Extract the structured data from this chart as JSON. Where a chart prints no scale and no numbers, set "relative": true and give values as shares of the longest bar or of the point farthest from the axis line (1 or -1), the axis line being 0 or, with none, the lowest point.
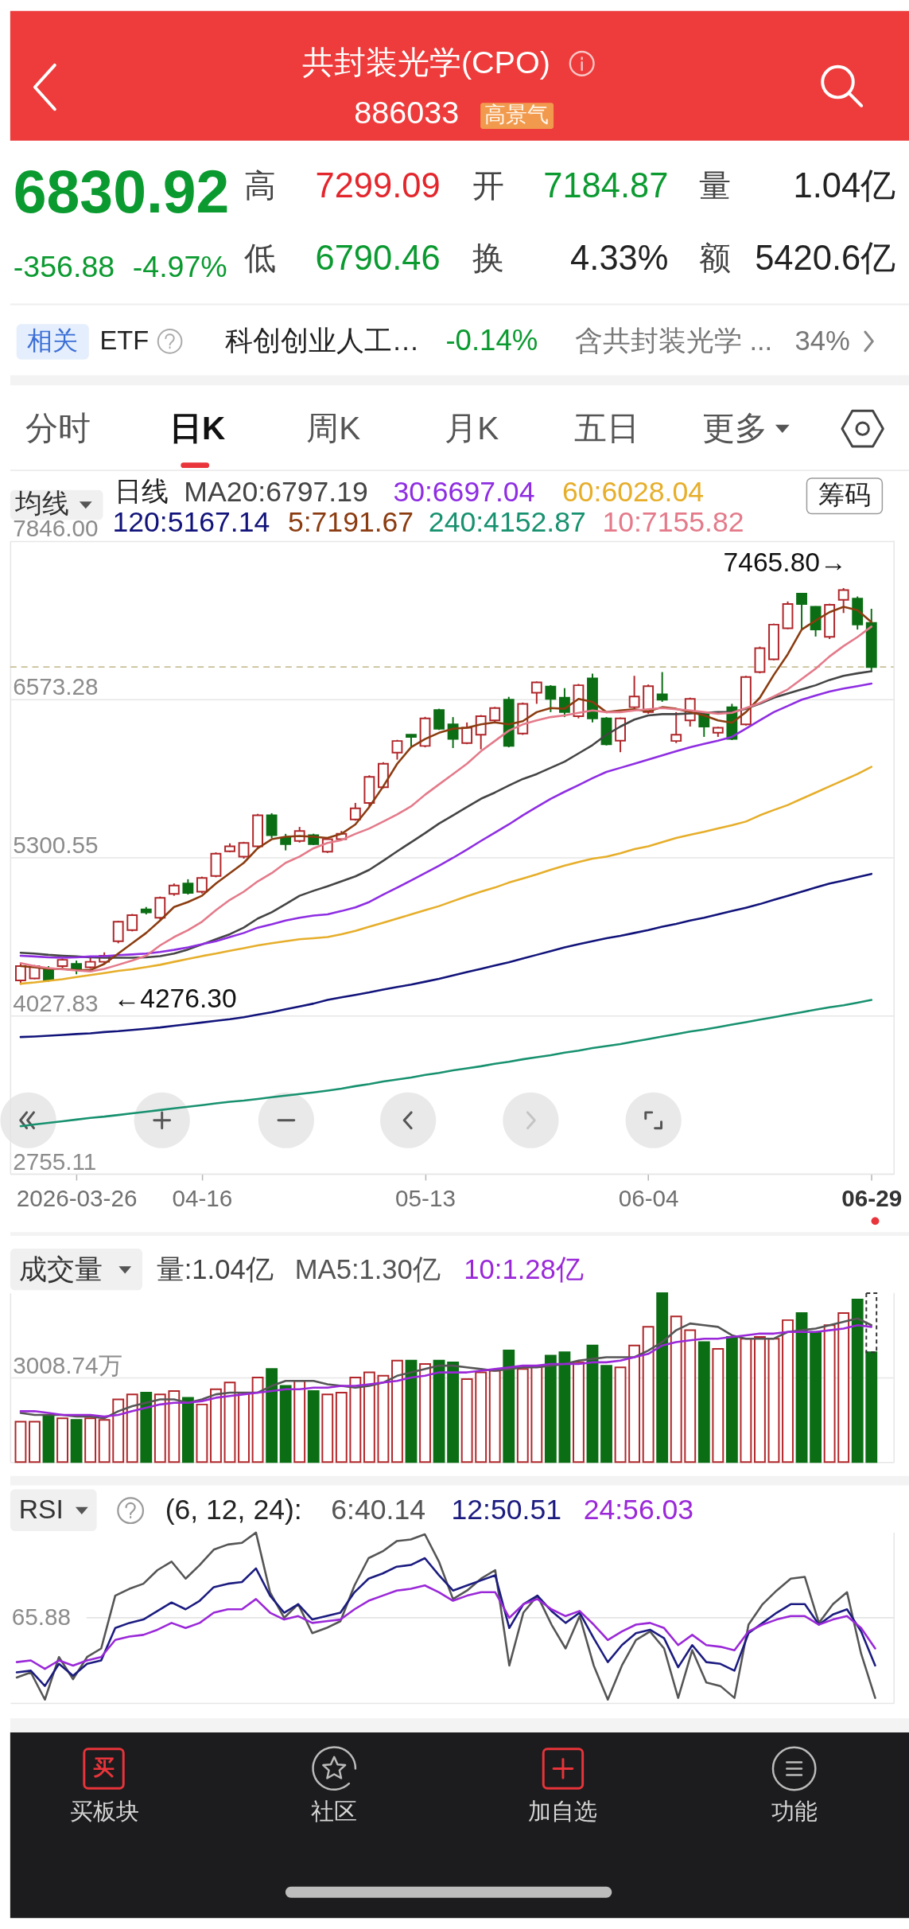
{
  "chart_data": [
    {
      "type": "other",
      "title": "共封装光学(CPO)",
      "annotations": [
        "886033",
        "高景气",
        "6830.92",
        "-356.88",
        "-4.97%",
        "高",
        "7299.09",
        "开",
        "7184.87",
        "量",
        "1.04亿",
        "低",
        "6790.46",
        "换",
        "4.33%",
        "额",
        "5420.6亿",
        "相关",
        "ETF",
        "科创创业人工…",
        "-0.14%",
        "含共封装光学 ...",
        "34%",
        "分时",
        "日K",
        "周K",
        "月K",
        "五日",
        "更多"
      ]
    },
    {
      "type": "candlestick",
      "title": "均线",
      "legend": "top",
      "legend_title": "日线",
      "grid": "y",
      "categories": [
        null,
        null,
        null,
        null,
        "2026-03-26",
        null,
        null,
        null,
        null,
        null,
        null,
        null,
        null,
        "04-16",
        null,
        null,
        null,
        null,
        null,
        null,
        null,
        null,
        null,
        null,
        null,
        null,
        null,
        null,
        null,
        "05-13",
        null,
        null,
        null,
        null,
        null,
        null,
        null,
        null,
        null,
        null,
        null,
        null,
        null,
        null,
        null,
        "06-04",
        null,
        null,
        null,
        null,
        null,
        null,
        null,
        null,
        null,
        null,
        null,
        null,
        null,
        null,
        null,
        "06-29"
      ],
      "ohlc": [
        [
          4310,
          4450,
          4276.3,
          4426
        ],
        [
          4327,
          4435,
          4320,
          4426
        ],
        [
          4393,
          4426,
          4300,
          4310
        ],
        [
          4426,
          4485,
          4410,
          4476
        ],
        [
          4443,
          4470,
          4360,
          4393
        ],
        [
          4416,
          4493,
          4405,
          4460
        ],
        [
          4460,
          4536,
          4450,
          4509
        ],
        [
          4626,
          4790,
          4609,
          4782
        ],
        [
          4715,
          4845,
          4705,
          4835
        ],
        [
          4881,
          4901,
          4841,
          4858
        ],
        [
          4815,
          4985,
          4800,
          4974
        ],
        [
          5007,
          5090,
          4991,
          5074
        ],
        [
          5090,
          5124,
          5001,
          5014
        ],
        [
          5024,
          5145,
          5010,
          5134
        ],
        [
          5150,
          5340,
          5140,
          5329
        ],
        [
          5349,
          5413,
          5340,
          5389
        ],
        [
          5306,
          5425,
          5290,
          5416
        ],
        [
          5389,
          5650,
          5380,
          5638
        ],
        [
          5638,
          5655,
          5456,
          5479
        ],
        [
          5456,
          5489,
          5356,
          5406
        ],
        [
          5432,
          5545,
          5419,
          5512
        ],
        [
          5479,
          5490,
          5399,
          5406
        ],
        [
          5346,
          5456,
          5335,
          5446
        ],
        [
          5446,
          5512,
          5440,
          5489
        ],
        [
          5605,
          5738,
          5595,
          5695
        ],
        [
          5738,
          5960,
          5705,
          5947
        ],
        [
          5864,
          6065,
          5855,
          6053
        ],
        [
          6143,
          6245,
          6086,
          6236
        ],
        [
          6286,
          6290,
          6186,
          6269
        ],
        [
          6196,
          6430,
          6185,
          6418
        ],
        [
          6485,
          6495,
          6325,
          6335
        ],
        [
          6369,
          6428,
          6179,
          6252
        ],
        [
          6219,
          6385,
          6210,
          6342
        ],
        [
          6286,
          6445,
          6169,
          6435
        ],
        [
          6402,
          6510,
          6390,
          6501
        ],
        [
          6568,
          6591,
          6185,
          6196
        ],
        [
          6296,
          6545,
          6285,
          6535
        ],
        [
          6624,
          6715,
          6535,
          6707
        ],
        [
          6674,
          6685,
          6468,
          6575
        ],
        [
          6584,
          6661,
          6428,
          6468
        ],
        [
          6435,
          6695,
          6418,
          6684
        ],
        [
          6740,
          6777,
          6385,
          6418
        ],
        [
          6418,
          6428,
          6200,
          6209
        ],
        [
          6239,
          6425,
          6146,
          6418
        ],
        [
          6508,
          6760,
          6495,
          6594
        ],
        [
          6468,
          6690,
          6455,
          6677
        ],
        [
          6611,
          6790,
          6551,
          6568
        ],
        [
          6236,
          6468,
          6219,
          6286
        ],
        [
          6402,
          6585,
          6352,
          6575
        ],
        [
          6452,
          6460,
          6269,
          6352
        ],
        [
          6302,
          6350,
          6269,
          6342
        ],
        [
          6508,
          6535,
          6243,
          6252
        ],
        [
          6369,
          6760,
          6360,
          6750
        ],
        [
          6790,
          6995,
          6780,
          6983
        ],
        [
          6893,
          7180,
          6885,
          7172
        ],
        [
          7142,
          7358,
          7135,
          7338
        ],
        [
          7421,
          7425,
          7132,
          7338
        ],
        [
          7315,
          7320,
          7076,
          7132
        ],
        [
          7073,
          7340,
          7056,
          7331
        ],
        [
          7371,
          7465.8,
          7265,
          7450
        ],
        [
          7381,
          7398,
          7132,
          7172
        ],
        [
          7184.87,
          7299.09,
          6790.46,
          6830.92
        ]
      ],
      "colors": [
        "#b0262a",
        "#b0262a",
        "#0b6e14",
        "#b0262a",
        "#0b6e14",
        "#b0262a",
        "#b0262a",
        "#b0262a",
        "#b0262a",
        "#0b6e14",
        "#b0262a",
        "#b0262a",
        "#0b6e14",
        "#b0262a",
        "#b0262a",
        "#b0262a",
        "#b0262a",
        "#b0262a",
        "#0b6e14",
        "#0b6e14",
        "#b0262a",
        "#0b6e14",
        "#b0262a",
        "#b0262a",
        "#b0262a",
        "#b0262a",
        "#b0262a",
        "#b0262a",
        "#0b6e14",
        "#b0262a",
        "#0b6e14",
        "#0b6e14",
        "#b0262a",
        "#b0262a",
        "#b0262a",
        "#0b6e14",
        "#b0262a",
        "#b0262a",
        "#0b6e14",
        "#0b6e14",
        "#b0262a",
        "#0b6e14",
        "#0b6e14",
        "#b0262a",
        "#b0262a",
        "#b0262a",
        "#0b6e14",
        "#b0262a",
        "#b0262a",
        "#0b6e14",
        "#b0262a",
        "#0b6e14",
        "#b0262a",
        "#b0262a",
        "#b0262a",
        "#b0262a",
        "#0b6e14",
        "#0b6e14",
        "#b0262a",
        "#b0262a",
        "#0b6e14",
        "#0b6e14"
      ],
      "ylim": [
        2755.11,
        7846
      ],
      "yticks": [
        {
          "value": 7846,
          "label": "7846.00"
        },
        6573.28,
        5300.55,
        4027.83,
        2755.11
      ],
      "ref_lines": [
        {
          "axis": "y",
          "value": 6830.92,
          "color": "#c8bf98",
          "line_style": "dashed"
        }
      ],
      "annotations": [
        "7465.80→",
        "←4276.30",
        "筹码"
      ],
      "series": [
        {
          "name": "MA20:6797.19",
          "type": "line",
          "color": "#444444",
          "values": [
            4533,
            4526,
            4516,
            4509,
            4503,
            4496,
            4493,
            4493,
            4493,
            4496,
            4506,
            4526,
            4559,
            4599,
            4642,
            4682,
            4735,
            4808,
            4858,
            4924,
            4991,
            5031,
            5067,
            5107,
            5147,
            5200,
            5273,
            5349,
            5422,
            5495,
            5572,
            5638,
            5705,
            5771,
            5821,
            5877,
            5930,
            5970,
            6020,
            6070,
            6136,
            6203,
            6286,
            6352,
            6408,
            6442,
            6452,
            6452,
            6458,
            6462,
            6468,
            6468,
            6495,
            6535,
            6584,
            6618,
            6651,
            6684,
            6727,
            6760,
            6780,
            6797.19
          ]
        },
        {
          "name": "30:6697.04",
          "type": "line",
          "color": "#8e2de2",
          "values": [
            4509,
            4503,
            4496,
            4493,
            4496,
            4503,
            4506,
            4513,
            4519,
            4526,
            4539,
            4556,
            4576,
            4602,
            4626,
            4659,
            4692,
            4735,
            4762,
            4792,
            4815,
            4832,
            4841,
            4868,
            4898,
            4941,
            5001,
            5057,
            5114,
            5173,
            5233,
            5296,
            5363,
            5432,
            5499,
            5565,
            5638,
            5705,
            5771,
            5827,
            5881,
            5937,
            5987,
            6020,
            6053,
            6087,
            6120,
            6153,
            6186,
            6213,
            6239,
            6269,
            6335,
            6402,
            6468,
            6518,
            6568,
            6601,
            6634,
            6657,
            6677,
            6697.04
          ]
        },
        {
          "name": "60:6028.04",
          "type": "line",
          "color": "#e6ae2a",
          "values": [
            4284,
            4294,
            4307,
            4320,
            4337,
            4353,
            4370,
            4387,
            4400,
            4417,
            4436,
            4460,
            4483,
            4506,
            4526,
            4549,
            4569,
            4592,
            4609,
            4626,
            4642,
            4650,
            4659,
            4682,
            4709,
            4742,
            4775,
            4808,
            4841,
            4875,
            4908,
            4948,
            4987,
            5024,
            5057,
            5097,
            5130,
            5163,
            5200,
            5233,
            5263,
            5290,
            5306,
            5333,
            5366,
            5389,
            5422,
            5456,
            5482,
            5505,
            5532,
            5558,
            5588,
            5638,
            5681,
            5721,
            5771,
            5821,
            5871,
            5921,
            5970,
            6028.04
          ]
        },
        {
          "name": "120:5167.14",
          "type": "line",
          "color": "#11137a",
          "values": [
            3855,
            3859,
            3865,
            3872,
            3879,
            3885,
            3895,
            3902,
            3912,
            3922,
            3932,
            3945,
            3958,
            3972,
            3985,
            3998,
            4015,
            4035,
            4055,
            4078,
            4101,
            4124,
            4154,
            4174,
            4194,
            4214,
            4237,
            4257,
            4277,
            4300,
            4323,
            4350,
            4377,
            4403,
            4430,
            4456,
            4486,
            4516,
            4546,
            4576,
            4602,
            4626,
            4649,
            4669,
            4692,
            4715,
            4742,
            4765,
            4792,
            4815,
            4841,
            4868,
            4895,
            4924,
            4958,
            4991,
            5024,
            5057,
            5090,
            5114,
            5140,
            5167.14
          ]
        },
        {
          "name": "5:7191.67",
          "type": "line",
          "color": "#8b3c10",
          "values": [
            4426,
            4416,
            4403,
            4403,
            4393,
            4393,
            4443,
            4526,
            4609,
            4692,
            4792,
            4901,
            4941,
            4991,
            5090,
            5173,
            5256,
            5373,
            5446,
            5466,
            5472,
            5466,
            5456,
            5489,
            5565,
            5705,
            5871,
            6053,
            6186,
            6252,
            6302,
            6335,
            6342,
            6369,
            6385,
            6369,
            6395,
            6468,
            6501,
            6495,
            6574,
            6551,
            6468,
            6481,
            6491,
            6475,
            6508,
            6495,
            6468,
            6442,
            6402,
            6382,
            6468,
            6584,
            6767,
            6933,
            7132,
            7205,
            7272,
            7315,
            7288,
            7191.67
          ]
        },
        {
          "name": "240:4152.87",
          "type": "line",
          "color": "#17916f",
          "values": [
            3138,
            3152,
            3165,
            3178,
            3191,
            3205,
            3215,
            3228,
            3241,
            3254,
            3268,
            3281,
            3294,
            3307,
            3321,
            3334,
            3344,
            3357,
            3371,
            3384,
            3397,
            3410,
            3424,
            3440,
            3460,
            3477,
            3497,
            3513,
            3530,
            3550,
            3567,
            3587,
            3603,
            3620,
            3640,
            3656,
            3676,
            3693,
            3709,
            3729,
            3746,
            3766,
            3782,
            3799,
            3819,
            3839,
            3859,
            3879,
            3899,
            3915,
            3935,
            3955,
            3975,
            3995,
            4015,
            4035,
            4055,
            4075,
            4094,
            4111,
            4131,
            4152.87
          ]
        },
        {
          "name": "10:7155.82",
          "type": "line",
          "color": "#e47a8a",
          "values": [
            4450,
            4426,
            4410,
            4400,
            4390,
            4383,
            4403,
            4436,
            4470,
            4509,
            4592,
            4659,
            4715,
            4782,
            4875,
            4958,
            5024,
            5107,
            5173,
            5256,
            5306,
            5373,
            5416,
            5439,
            5489,
            5532,
            5588,
            5645,
            5711,
            5804,
            5887,
            5970,
            6053,
            6153,
            6236,
            6319,
            6369,
            6402,
            6428,
            6442,
            6462,
            6481,
            6468,
            6468,
            6481,
            6491,
            6501,
            6491,
            6481,
            6468,
            6455,
            6462,
            6501,
            6541,
            6594,
            6651,
            6734,
            6817,
            6916,
            6999,
            7072,
            7155.82
          ]
        }
      ]
    },
    {
      "type": "bar",
      "title": "成交量",
      "subtitle": "量:1.04亿",
      "stacked": true,
      "tick_labels": "y",
      "legend": "top",
      "grid": "y",
      "ylim": [
        0,
        6017.48
      ],
      "yticks": [
        {
          "value": 3008.74,
          "label": "3008.74万"
        }
      ],
      "categories": [
        null,
        null,
        null,
        null,
        null,
        null,
        null,
        null,
        null,
        null,
        null,
        null,
        null,
        null,
        null,
        null,
        null,
        null,
        null,
        null,
        null,
        null,
        null,
        null,
        null,
        null,
        null,
        null,
        null,
        null,
        null,
        null,
        null,
        null,
        null,
        null,
        null,
        null,
        null,
        null,
        null,
        null,
        null,
        null,
        null,
        null,
        null,
        null,
        null,
        null,
        null,
        null,
        null,
        null,
        null,
        null,
        null,
        null,
        null,
        null,
        null,
        null
      ],
      "series": [
        {
          "type": "bar",
          "colors": [
            "#b0262a",
            "#b0262a",
            "#0b6e14",
            "#b0262a",
            "#0b6e14",
            "#b0262a",
            "#b0262a",
            "#b0262a",
            "#b0262a",
            "#0b6e14",
            "#b0262a",
            "#b0262a",
            "#0b6e14",
            "#b0262a",
            "#b0262a",
            "#b0262a",
            "#b0262a",
            "#b0262a",
            "#0b6e14",
            "#0b6e14",
            "#b0262a",
            "#0b6e14",
            "#b0262a",
            "#b0262a",
            "#b0262a",
            "#b0262a",
            "#b0262a",
            "#b0262a",
            "#0b6e14",
            "#b0262a",
            "#0b6e14",
            "#0b6e14",
            "#b0262a",
            "#b0262a",
            "#b0262a",
            "#0b6e14",
            "#b0262a",
            "#b0262a",
            "#0b6e14",
            "#0b6e14",
            "#b0262a",
            "#0b6e14",
            "#0b6e14",
            "#b0262a",
            "#b0262a",
            "#b0262a",
            "#0b6e14",
            "#b0262a",
            "#b0262a",
            "#0b6e14",
            "#b0262a",
            "#0b6e14",
            "#b0262a",
            "#b0262a",
            "#b0262a",
            "#b0262a",
            "#0b6e14",
            "#0b6e14",
            "#b0262a",
            "#b0262a",
            "#0b6e14",
            "#0b6e14"
          ],
          "values": [
            1440,
            1440,
            1620,
            1560,
            1500,
            1560,
            1500,
            2230,
            2410,
            2470,
            2410,
            2530,
            2290,
            2050,
            2590,
            2830,
            2470,
            3010,
            3310,
            2710,
            2890,
            2530,
            2410,
            2470,
            3010,
            3190,
            3070,
            3610,
            3610,
            3490,
            3610,
            3550,
            2950,
            3190,
            3250,
            3970,
            3310,
            3430,
            3790,
            3910,
            3550,
            4150,
            3430,
            3370,
            4150,
            4810,
            6010,
            5180,
            4690,
            4270,
            4030,
            4450,
            4390,
            4450,
            4390,
            5050,
            5300,
            4630,
            4870,
            5300,
            5780,
            3910
          ]
        },
        {
          "type": "bar",
          "color": "#333333",
          "line_style": "dashed",
          "values": [
            null,
            null,
            null,
            null,
            null,
            null,
            null,
            null,
            null,
            null,
            null,
            null,
            null,
            null,
            null,
            null,
            null,
            null,
            null,
            null,
            null,
            null,
            null,
            null,
            null,
            null,
            null,
            null,
            null,
            null,
            null,
            null,
            null,
            null,
            null,
            null,
            null,
            null,
            null,
            null,
            null,
            null,
            null,
            null,
            null,
            null,
            null,
            null,
            null,
            null,
            null,
            null,
            null,
            null,
            null,
            null,
            null,
            null,
            null,
            null,
            null,
            2100
          ]
        },
        {
          "name": "MA5:1.30亿",
          "type": "line",
          "color": "#555555",
          "values": [
            1750,
            1680,
            1680,
            1680,
            1620,
            1620,
            1560,
            1810,
            1990,
            2110,
            2230,
            2230,
            2110,
            2230,
            2410,
            2470,
            2470,
            2470,
            2710,
            2890,
            2890,
            2890,
            2770,
            2710,
            2650,
            2710,
            2830,
            3070,
            3190,
            3310,
            3430,
            3430,
            3370,
            3310,
            3250,
            3310,
            3370,
            3370,
            3430,
            3490,
            3610,
            3670,
            3730,
            3730,
            3730,
            3970,
            4270,
            4690,
            4930,
            4870,
            4810,
            4510,
            4390,
            4390,
            4390,
            4630,
            4690,
            4750,
            4870,
            4990,
            5110,
            4870
          ]
        },
        {
          "name": "10:1.28亿",
          "type": "line",
          "color": "#9a28d8",
          "values": [
            1810,
            1810,
            1750,
            1680,
            1680,
            1680,
            1620,
            1680,
            1810,
            1930,
            2050,
            2110,
            2110,
            2170,
            2290,
            2350,
            2410,
            2470,
            2530,
            2590,
            2590,
            2650,
            2650,
            2710,
            2710,
            2770,
            2830,
            2890,
            3010,
            3070,
            3190,
            3190,
            3190,
            3250,
            3310,
            3370,
            3430,
            3430,
            3490,
            3490,
            3490,
            3550,
            3550,
            3610,
            3730,
            3850,
            4150,
            4270,
            4330,
            4390,
            4390,
            4450,
            4510,
            4570,
            4570,
            4630,
            4630,
            4630,
            4690,
            4750,
            4870,
            4810
          ]
        }
      ]
    },
    {
      "type": "line",
      "title": "RSI",
      "subtitle": "(6, 12, 24):",
      "legend": "top",
      "relative": true,
      "tick_labels": false,
      "annotations": [
        "65.88"
      ],
      "categories": [
        null,
        null,
        null,
        null,
        null,
        null,
        null,
        null,
        null,
        null,
        null,
        null,
        null,
        null,
        null,
        null,
        null,
        null,
        null,
        null,
        null,
        null,
        null,
        null,
        null,
        null,
        null,
        null,
        null,
        null,
        null,
        null,
        null,
        null,
        null,
        null,
        null,
        null,
        null,
        null,
        null,
        null,
        null,
        null,
        null,
        null,
        null,
        null,
        null,
        null,
        null,
        null,
        null,
        null,
        null,
        null,
        null,
        null,
        null,
        null,
        null,
        null
      ],
      "ref_lines": [
        {
          "axis": "y",
          "value": 0.5,
          "color": "#e4e4e4"
        }
      ],
      "series": [
        {
          "name": "6:40.14",
          "color": "#555555",
          "values": [
            0.15,
            0.18,
            0.02,
            0.27,
            0.14,
            0.27,
            0.32,
            0.63,
            0.67,
            0.7,
            0.78,
            0.83,
            0.73,
            0.81,
            0.9,
            0.93,
            0.94,
            1,
            0.65,
            0.5,
            0.58,
            0.41,
            0.44,
            0.48,
            0.69,
            0.85,
            0.89,
            0.95,
            0.96,
            0.99,
            0.83,
            0.61,
            0.66,
            0.73,
            0.78,
            0.22,
            0.53,
            0.63,
            0.46,
            0.32,
            0.51,
            0.22,
            0.02,
            0.22,
            0.37,
            0.42,
            0.32,
            0.03,
            0.31,
            0.12,
            0.1,
            0.03,
            0.46,
            0.58,
            0.66,
            0.73,
            0.74,
            0.47,
            0.58,
            0.65,
            0.29,
            0.03
          ]
        },
        {
          "name": "12:50.51",
          "color": "#1b1b80",
          "values": [
            0.18,
            0.19,
            0.1,
            0.23,
            0.16,
            0.23,
            0.25,
            0.44,
            0.47,
            0.49,
            0.54,
            0.59,
            0.55,
            0.6,
            0.68,
            0.7,
            0.71,
            0.79,
            0.63,
            0.53,
            0.58,
            0.49,
            0.51,
            0.53,
            0.65,
            0.73,
            0.76,
            0.8,
            0.81,
            0.85,
            0.75,
            0.66,
            0.69,
            0.72,
            0.75,
            0.44,
            0.58,
            0.63,
            0.54,
            0.47,
            0.53,
            0.38,
            0.24,
            0.34,
            0.41,
            0.43,
            0.38,
            0.21,
            0.34,
            0.24,
            0.23,
            0.19,
            0.41,
            0.47,
            0.53,
            0.58,
            0.58,
            0.46,
            0.52,
            0.55,
            0.42,
            0.22
          ]
        },
        {
          "name": "24:56.03",
          "color": "#9a28d8",
          "values": [
            0.24,
            0.25,
            0.2,
            0.25,
            0.22,
            0.25,
            0.27,
            0.37,
            0.39,
            0.4,
            0.43,
            0.47,
            0.44,
            0.47,
            0.53,
            0.55,
            0.55,
            0.61,
            0.53,
            0.49,
            0.51,
            0.47,
            0.48,
            0.49,
            0.55,
            0.6,
            0.63,
            0.66,
            0.67,
            0.69,
            0.65,
            0.6,
            0.63,
            0.65,
            0.65,
            0.5,
            0.58,
            0.61,
            0.55,
            0.51,
            0.54,
            0.46,
            0.37,
            0.42,
            0.46,
            0.47,
            0.44,
            0.34,
            0.4,
            0.34,
            0.33,
            0.31,
            0.42,
            0.46,
            0.49,
            0.51,
            0.51,
            0.46,
            0.49,
            0.51,
            0.44,
            0.32
          ]
        }
      ]
    },
    {
      "type": "other",
      "annotations": [
        "买",
        "买板块",
        "社区",
        "加自选",
        "功能"
      ]
    }
  ]
}
